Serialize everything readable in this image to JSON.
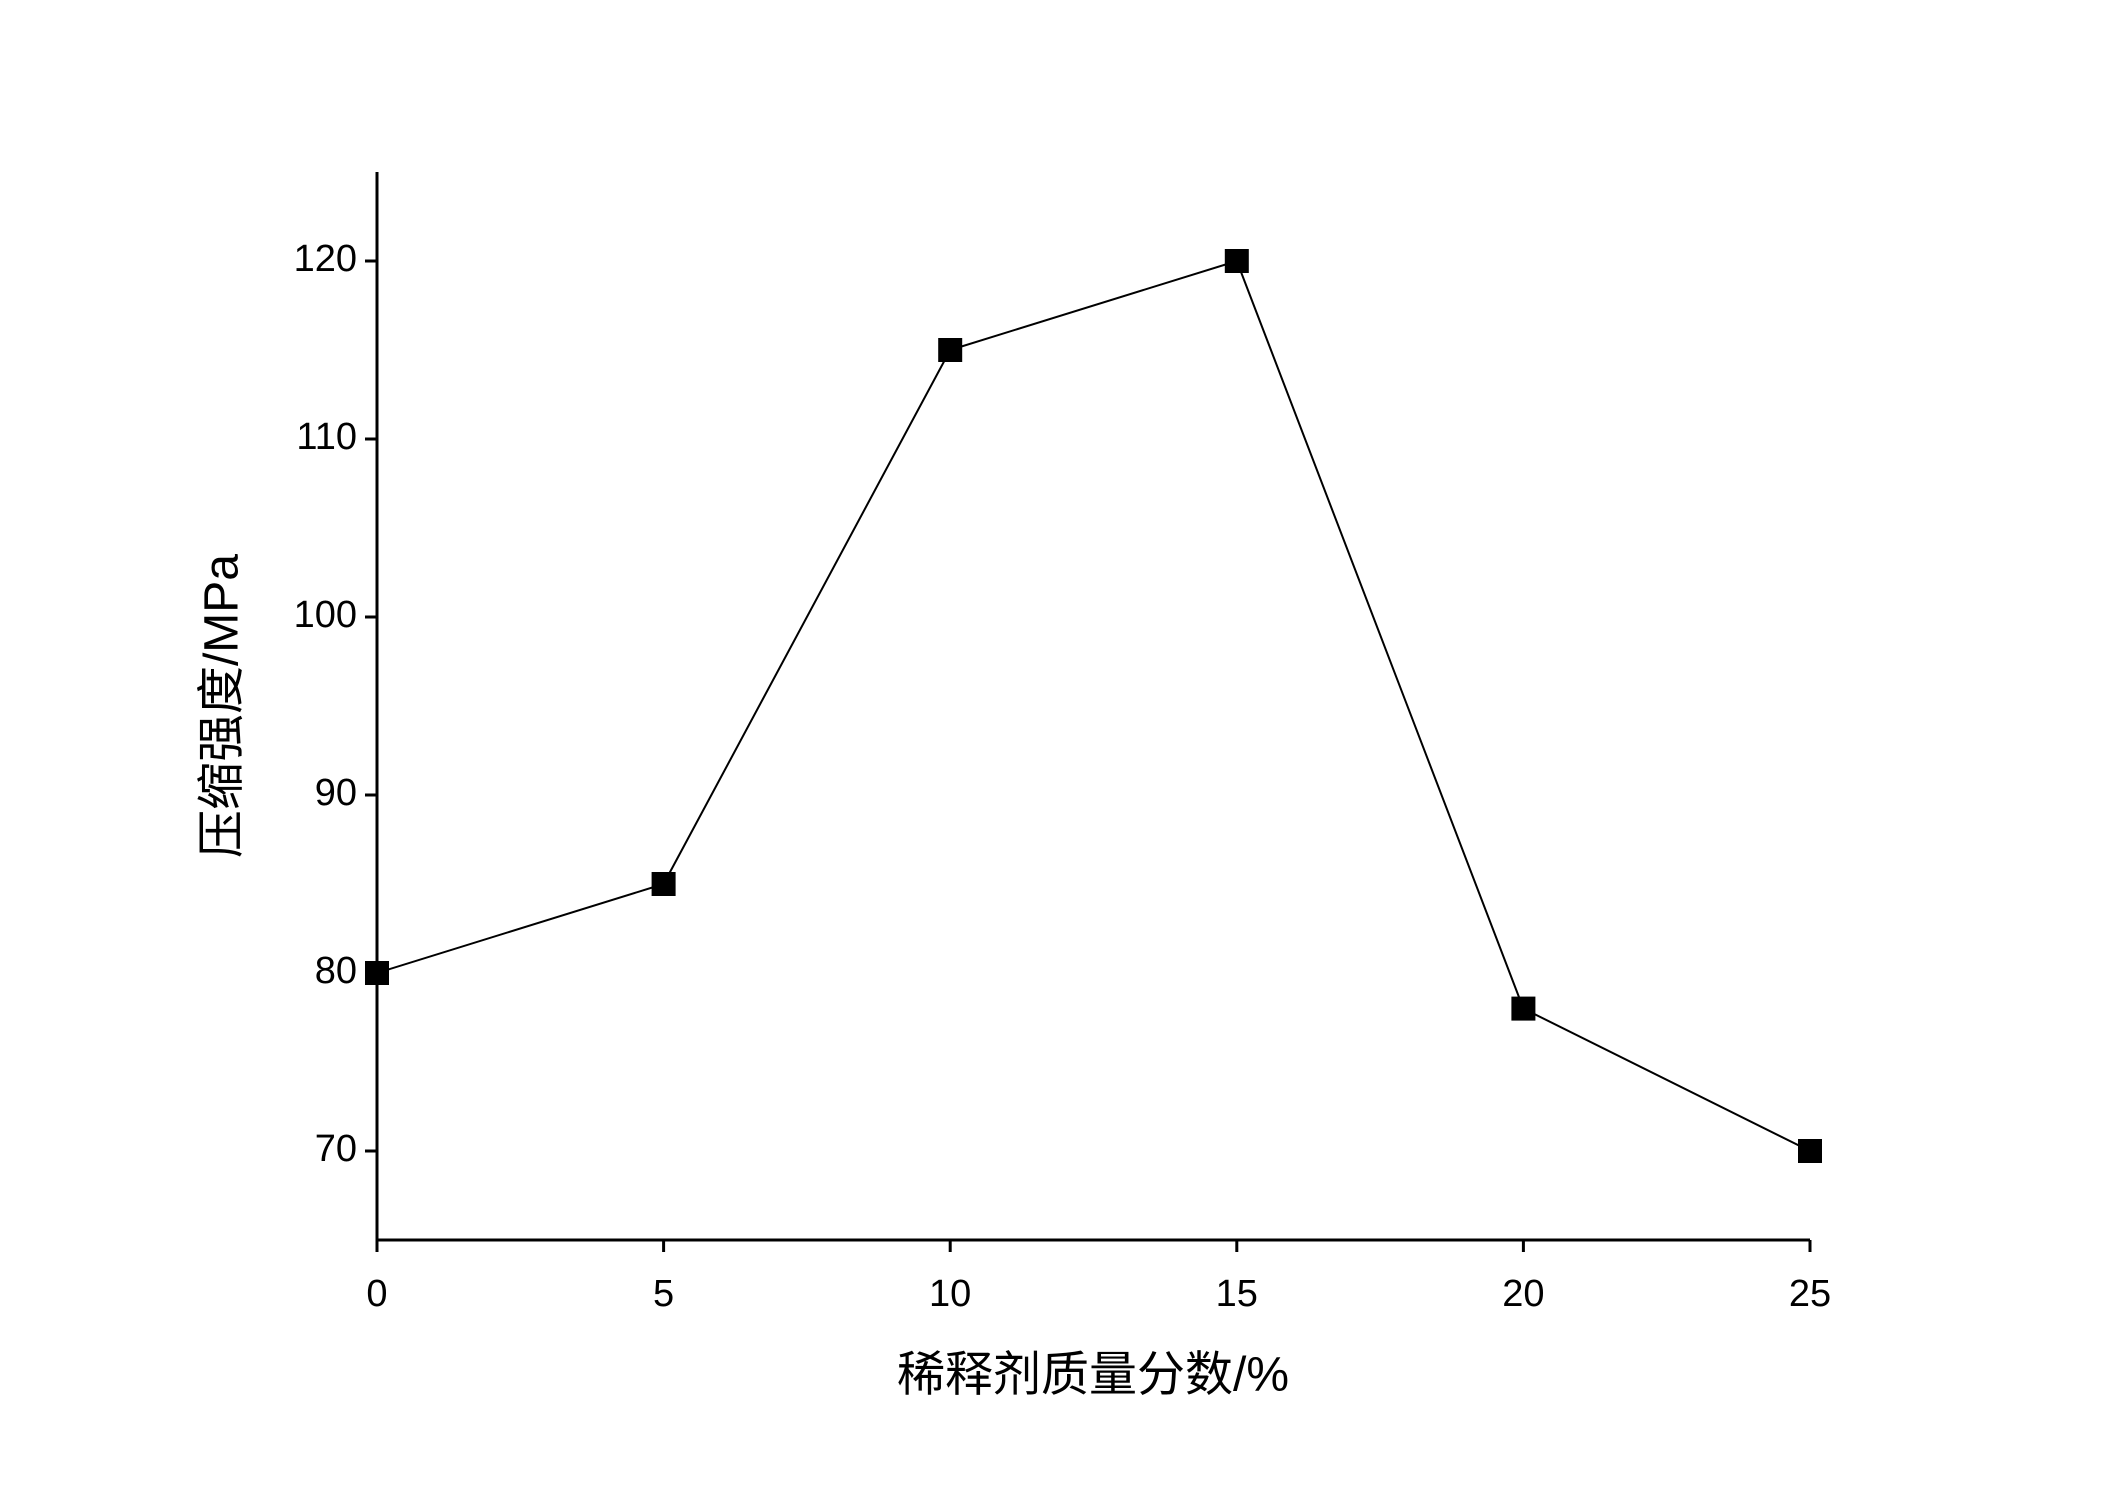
{
  "chart_data": {
    "type": "line",
    "x_label": "稀释剂质量分数/%",
    "y_label": "压缩强度/MPa",
    "x": [
      0,
      5,
      10,
      15,
      20,
      25
    ],
    "series": [
      {
        "color": "#000000",
        "values": [
          80,
          85,
          115,
          120,
          78,
          70
        ]
      }
    ],
    "xlim": [
      0,
      25
    ],
    "xticks": [
      0,
      5,
      10,
      15,
      20,
      25
    ],
    "ylim": [
      65,
      125
    ],
    "yticks": [
      70,
      80,
      90,
      100,
      110,
      120
    ],
    "grid": false,
    "marker": "square"
  }
}
